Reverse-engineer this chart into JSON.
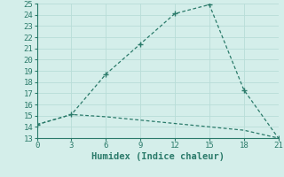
{
  "xlabel": "Humidex (Indice chaleur)",
  "line1_x": [
    0,
    3,
    6,
    9,
    12,
    15,
    18,
    21
  ],
  "line1_y": [
    14.2,
    15.1,
    18.7,
    21.4,
    24.1,
    24.9,
    17.3,
    13.0
  ],
  "line2_x": [
    0,
    3,
    6,
    9,
    12,
    15,
    18,
    21
  ],
  "line2_y": [
    14.2,
    15.1,
    14.9,
    14.6,
    14.3,
    14.0,
    13.7,
    13.0
  ],
  "line_color": "#2a7a6a",
  "bg_color": "#d4eeea",
  "grid_color": "#b8ddd8",
  "xlim": [
    0,
    21
  ],
  "ylim": [
    13,
    25
  ],
  "xticks": [
    0,
    3,
    6,
    9,
    12,
    15,
    18,
    21
  ],
  "yticks": [
    13,
    14,
    15,
    16,
    17,
    18,
    19,
    20,
    21,
    22,
    23,
    24,
    25
  ],
  "xlabel_fontsize": 7.5,
  "tick_fontsize": 6.5
}
